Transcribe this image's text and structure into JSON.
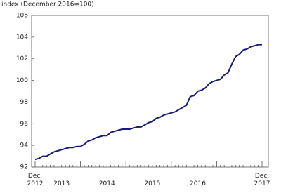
{
  "chart_data": {
    "type": "line",
    "y_axis_label": "index (December 2016=100)",
    "categories": [
      "Dec.\n2012",
      null,
      null,
      null,
      null,
      null,
      null,
      "2013",
      null,
      null,
      null,
      null,
      null,
      null,
      null,
      null,
      null,
      null,
      null,
      "2014",
      null,
      null,
      null,
      null,
      null,
      null,
      null,
      null,
      null,
      null,
      null,
      "2015",
      null,
      null,
      null,
      null,
      null,
      null,
      null,
      null,
      null,
      null,
      null,
      "2016",
      null,
      null,
      null,
      null,
      null,
      null,
      null,
      null,
      null,
      null,
      null,
      null,
      null,
      null,
      null,
      null,
      "Dec.\n2017"
    ],
    "series": [
      {
        "color": "#1a1a78",
        "values": [
          92.7,
          92.8,
          93.0,
          93.0,
          93.2,
          93.4,
          93.5,
          93.6,
          93.7,
          93.8,
          93.8,
          93.9,
          93.9,
          94.1,
          94.4,
          94.5,
          94.7,
          94.8,
          94.9,
          94.9,
          95.2,
          95.3,
          95.4,
          95.5,
          95.5,
          95.5,
          95.6,
          95.7,
          95.7,
          95.9,
          96.1,
          96.2,
          96.5,
          96.6,
          96.8,
          96.9,
          97.0,
          97.1,
          97.3,
          97.5,
          97.7,
          98.5,
          98.6,
          99.0,
          99.1,
          99.3,
          99.7,
          99.9,
          100.0,
          100.1,
          100.5,
          100.7,
          101.5,
          102.2,
          102.4,
          102.8,
          102.9,
          103.1,
          103.2,
          103.3,
          103.3
        ]
      }
    ],
    "ylim": [
      92,
      106
    ],
    "yticks": [
      92,
      94,
      96,
      98,
      100,
      102,
      104,
      106
    ],
    "grid": false
  }
}
